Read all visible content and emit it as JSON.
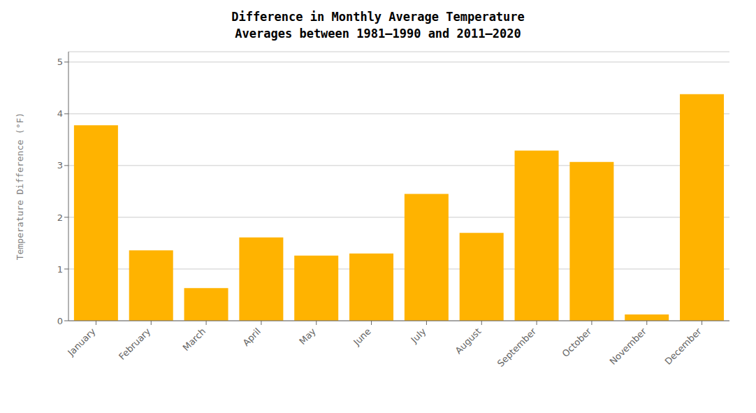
{
  "chart_data": {
    "type": "bar",
    "title": "Difference in Monthly Average Temperature\nAverages between 1981–1990 and 2011–2020",
    "ylabel": "Temperature Difference (°F)",
    "categories": [
      "January",
      "February",
      "March",
      "April",
      "May",
      "June",
      "July",
      "August",
      "September",
      "October",
      "November",
      "December"
    ],
    "values": [
      3.78,
      1.36,
      0.63,
      1.61,
      1.26,
      1.3,
      2.45,
      1.7,
      3.29,
      3.07,
      0.12,
      4.38
    ],
    "color": "#FFB300",
    "ylim": [
      0,
      5.2
    ],
    "yticks": [
      0,
      1,
      2,
      3,
      4,
      5
    ],
    "grid": true
  }
}
